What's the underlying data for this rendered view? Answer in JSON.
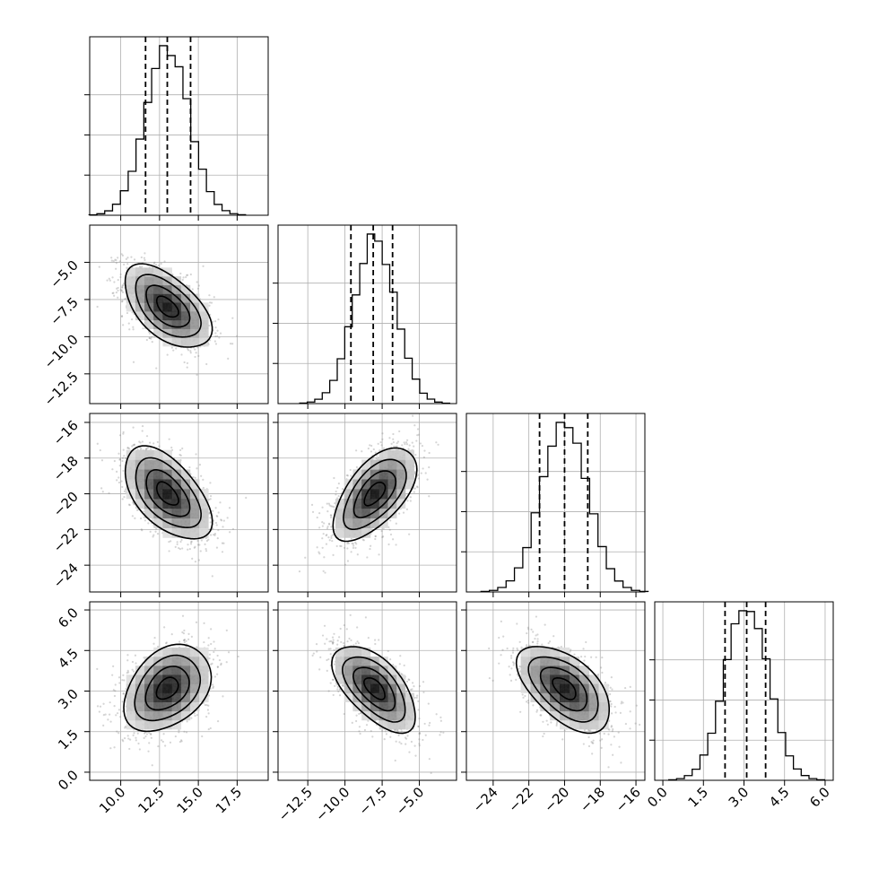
{
  "chart_data": {
    "type": "corner",
    "title": "",
    "parameters": [
      {
        "mean": 13.0,
        "sd": 1.4,
        "range": [
          8.0,
          19.5
        ],
        "ticks": [
          10.0,
          12.5,
          15.0,
          17.5
        ],
        "tick_labels": [
          "10.0",
          "12.5",
          "15.0",
          "17.5"
        ],
        "quantiles": [
          11.6,
          13.0,
          14.5
        ]
      },
      {
        "mean": -8.0,
        "sd": 1.4,
        "range": [
          -14.5,
          -2.5
        ],
        "ticks": [
          -12.5,
          -10.0,
          -7.5,
          -5.0
        ],
        "tick_labels": [
          "−12.5",
          "−10.0",
          "−7.5",
          "−5.0"
        ],
        "quantiles": [
          -9.6,
          -8.1,
          -6.8
        ]
      },
      {
        "mean": -20.0,
        "sd": 1.3,
        "range": [
          -25.5,
          -15.5
        ],
        "ticks": [
          -24,
          -22,
          -20,
          -18,
          -16
        ],
        "tick_labels": [
          "−24",
          "−22",
          "−20",
          "−18",
          "−16"
        ],
        "quantiles": [
          -21.4,
          -20.0,
          -18.7
        ]
      },
      {
        "mean": 3.1,
        "sd": 0.8,
        "range": [
          -0.3,
          6.3
        ],
        "ticks": [
          0.0,
          1.5,
          3.0,
          4.5,
          6.0
        ],
        "tick_labels": [
          "0.0",
          "1.5",
          "3.0",
          "4.5",
          "6.0"
        ],
        "quantiles": [
          2.3,
          3.1,
          3.8
        ]
      }
    ],
    "correlations": [
      {
        "i": 1,
        "j": 0,
        "rho": -0.55
      },
      {
        "i": 2,
        "j": 0,
        "rho": -0.55
      },
      {
        "i": 2,
        "j": 1,
        "rho": 0.6
      },
      {
        "i": 3,
        "j": 0,
        "rho": 0.35
      },
      {
        "i": 3,
        "j": 1,
        "rho": -0.6
      },
      {
        "i": 3,
        "j": 2,
        "rho": -0.55
      }
    ],
    "contour_levels_sigma": [
      0.5,
      1.0,
      1.5,
      2.0
    ],
    "hist_bins": 20,
    "histogram_y_ticks": 4,
    "grid": true,
    "colors": {
      "lines": "#000000",
      "scatter": "#888888",
      "density_dark": "#000000",
      "density_light": "#ffffff",
      "grid": "#b0b0b0"
    }
  }
}
